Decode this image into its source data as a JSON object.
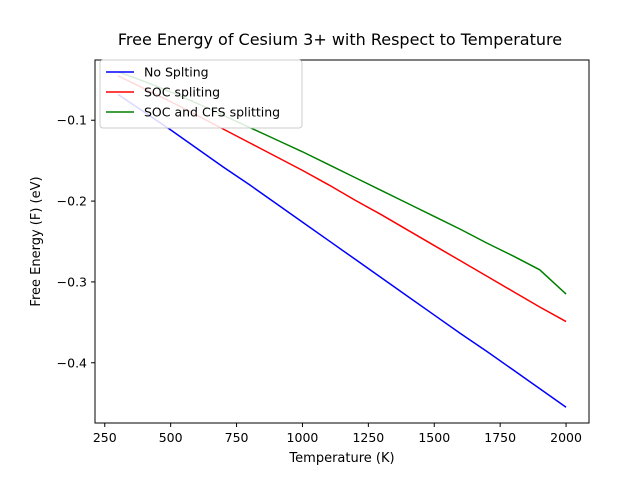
{
  "chart_data": {
    "type": "line",
    "title": "Free Energy of Cesium 3+ with Respect to Temperature",
    "xlabel": "Temperature (K)",
    "ylabel": "Free Energy (F) (eV)",
    "xlim": [
      213,
      2087
    ],
    "ylim": [
      -0.4745,
      -0.0255
    ],
    "xticks": [
      250,
      500,
      750,
      1000,
      1250,
      1500,
      1750,
      2000
    ],
    "xtick_labels": [
      "250",
      "500",
      "750",
      "1000",
      "1250",
      "1500",
      "1750",
      "2000"
    ],
    "yticks": [
      -0.4,
      -0.3,
      -0.2,
      -0.1
    ],
    "ytick_labels": [
      "−0.4",
      "−0.3",
      "−0.2",
      "−0.1"
    ],
    "grid": false,
    "legend_position": "top-left",
    "x": [
      300,
      400,
      500,
      600,
      700,
      800,
      900,
      1000,
      1100,
      1200,
      1300,
      1400,
      1500,
      1600,
      1700,
      1800,
      1900,
      2000
    ],
    "series": [
      {
        "name": "No Splting",
        "color": "#0000ff",
        "values": [
          -0.068,
          -0.09,
          -0.112,
          -0.135,
          -0.158,
          -0.18,
          -0.203,
          -0.226,
          -0.249,
          -0.272,
          -0.295,
          -0.318,
          -0.341,
          -0.364,
          -0.386,
          -0.409,
          -0.432,
          -0.455
        ]
      },
      {
        "name": "SOC spliting",
        "color": "#ff0000",
        "values": [
          -0.045,
          -0.061,
          -0.077,
          -0.094,
          -0.111,
          -0.128,
          -0.145,
          -0.162,
          -0.18,
          -0.199,
          -0.217,
          -0.236,
          -0.255,
          -0.274,
          -0.293,
          -0.312,
          -0.331,
          -0.349
        ]
      },
      {
        "name": "SOC and CFS splitting",
        "color": "#008000",
        "values": [
          -0.04,
          -0.052,
          -0.065,
          -0.079,
          -0.094,
          -0.109,
          -0.124,
          -0.139,
          -0.155,
          -0.171,
          -0.187,
          -0.203,
          -0.219,
          -0.235,
          -0.252,
          -0.268,
          -0.285,
          -0.315
        ]
      }
    ]
  }
}
